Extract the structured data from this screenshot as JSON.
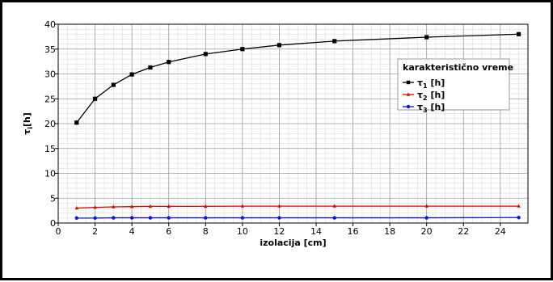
{
  "chart_data": {
    "type": "line",
    "xlabel": "izolacija [cm]",
    "ylabel": "τ",
    "ylabel_sub": "i",
    "ylabel_unit": "[h]",
    "xlim": [
      0,
      25.5
    ],
    "ylim": [
      0,
      40
    ],
    "x_ticks": [
      0,
      2,
      4,
      6,
      8,
      10,
      12,
      14,
      16,
      18,
      20,
      22,
      24
    ],
    "y_ticks": [
      0,
      5,
      10,
      15,
      20,
      25,
      30,
      35,
      40
    ],
    "grid": true,
    "legend": {
      "title": "karakteristično vreme",
      "placement": "right"
    },
    "x": [
      1,
      2,
      3,
      4,
      5,
      6,
      8,
      10,
      12,
      15,
      20,
      25
    ],
    "series": [
      {
        "name": "τ",
        "sub": "1",
        "unit": "[h]",
        "color": "#000000",
        "marker": "square",
        "values": [
          20.2,
          25.0,
          27.8,
          29.9,
          31.3,
          32.4,
          34.0,
          35.0,
          35.8,
          36.6,
          37.4,
          38.0
        ]
      },
      {
        "name": "τ",
        "sub": "2",
        "unit": "[h]",
        "color": "#e00000",
        "marker": "triangle",
        "values": [
          3.0,
          3.15,
          3.25,
          3.3,
          3.35,
          3.35,
          3.35,
          3.4,
          3.4,
          3.4,
          3.4,
          3.4
        ]
      },
      {
        "name": "τ",
        "sub": "3",
        "unit": "[h]",
        "color": "#1010e0",
        "marker": "circle",
        "values": [
          1.0,
          1.0,
          1.05,
          1.05,
          1.05,
          1.05,
          1.05,
          1.05,
          1.05,
          1.05,
          1.05,
          1.1
        ]
      }
    ]
  }
}
